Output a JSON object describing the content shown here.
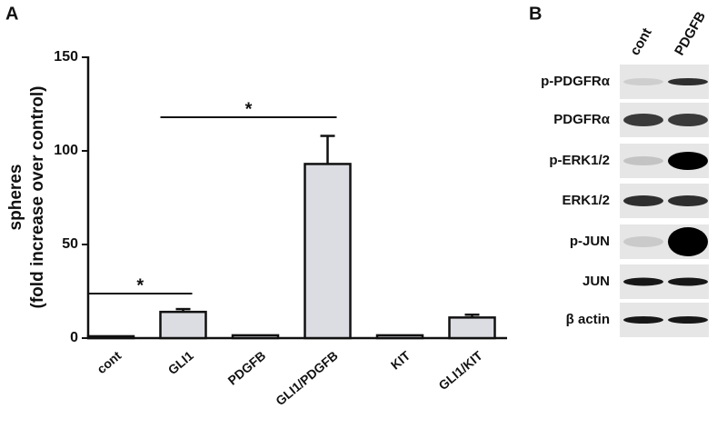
{
  "panels": [
    "A",
    "B"
  ],
  "chart_data": {
    "type": "bar",
    "ylabel": [
      "spheres",
      "(fold increase over control)"
    ],
    "categories": [
      "cont",
      "GLI1",
      "PDGFB",
      "GLI1/PDGFB",
      "KIT",
      "GLI1/KIT"
    ],
    "values": [
      1,
      14,
      1.5,
      93,
      1.5,
      11
    ],
    "errors": [
      0,
      1.5,
      0,
      15,
      0,
      1.5
    ],
    "color": "#dcdde3",
    "ylim": [
      0,
      150
    ],
    "yticks": [
      0,
      50,
      100,
      150
    ],
    "annotations": [
      {
        "text": "*",
        "from": 0,
        "to": 1
      },
      {
        "text": "*",
        "from": 1,
        "to": 3
      }
    ]
  },
  "blot": {
    "columns": [
      "cont",
      "PDGFB"
    ],
    "rows": [
      "p-PDGFRα",
      "PDGFRα",
      "p-ERK1/2",
      "ERK1/2",
      "p-JUN",
      "JUN",
      "β actin"
    ]
  }
}
